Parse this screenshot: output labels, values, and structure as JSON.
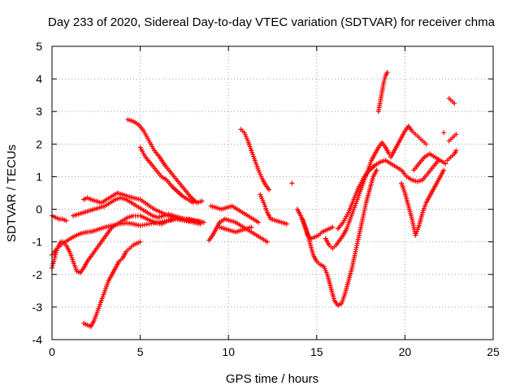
{
  "chart_data": {
    "type": "scatter",
    "title": "Day 233 of 2020, Sidereal Day-to-day VTEC variation (SDTVAR) for receiver chma",
    "xlabel": "GPS time / hours",
    "ylabel": "SDTVAR / TECUs",
    "xlim": [
      0,
      25
    ],
    "ylim": [
      -4,
      5
    ],
    "xticks": [
      0,
      5,
      10,
      15,
      20,
      25
    ],
    "xtick_labels": [
      "0",
      "5",
      "10",
      "15",
      "20",
      "25"
    ],
    "yticks": [
      -4,
      -3,
      -2,
      -1,
      0,
      1,
      2,
      3,
      4,
      5
    ],
    "ytick_labels": [
      "-4",
      "-3",
      "-2",
      "-1",
      "0",
      "1",
      "2",
      "3",
      "4",
      "5"
    ],
    "grid": true,
    "legend": "none",
    "marker": "plus",
    "color": "#ff0000",
    "series": [
      {
        "x": [
          0.0,
          0.2,
          0.4,
          0.6,
          0.8
        ],
        "y": [
          -0.2,
          -0.25,
          -0.3,
          -0.3,
          -0.35
        ]
      },
      {
        "x": [
          0.0,
          0.1,
          0.2,
          0.3,
          0.4,
          0.5
        ],
        "y": [
          -1.8,
          -1.6,
          -1.4,
          -1.2,
          -1.1,
          -1.0
        ]
      },
      {
        "x": [
          0.0,
          0.1,
          0.2,
          0.4,
          0.6,
          0.9,
          1.2,
          1.4,
          1.6,
          1.8,
          2.0,
          2.3,
          2.6,
          3.0,
          3.4,
          3.8,
          4.2,
          4.6,
          5.0,
          5.5,
          6.0,
          6.5,
          7.0,
          7.5,
          8.0,
          8.4
        ],
        "y": [
          -1.4,
          -1.35,
          -1.25,
          -1.15,
          -1.05,
          -0.95,
          -0.85,
          -0.8,
          -0.75,
          -0.72,
          -0.7,
          -0.68,
          -0.62,
          -0.55,
          -0.5,
          -0.45,
          -0.42,
          -0.45,
          -0.5,
          -0.45,
          -0.4,
          -0.35,
          -0.3,
          -0.35,
          -0.4,
          -0.45
        ]
      },
      {
        "x": [
          0.6,
          0.8,
          1.0,
          1.2,
          1.4,
          1.6,
          1.8,
          2.0,
          2.2,
          2.4,
          2.6,
          2.8,
          3.0,
          3.2,
          3.4,
          3.7,
          4.0,
          4.3,
          4.6,
          5.0,
          5.4,
          5.8,
          6.2,
          6.6,
          7.0,
          7.5,
          8.0,
          8.5
        ],
        "y": [
          -1.0,
          -1.1,
          -1.3,
          -1.6,
          -1.9,
          -1.95,
          -1.8,
          -1.6,
          -1.45,
          -1.3,
          -1.15,
          -1.0,
          -0.85,
          -0.7,
          -0.55,
          -0.45,
          -0.35,
          -0.25,
          -0.2,
          -0.2,
          -0.3,
          -0.4,
          -0.45,
          -0.35,
          -0.3,
          -0.3,
          -0.35,
          -0.4
        ]
      },
      {
        "x": [
          1.8,
          2.0,
          2.2,
          2.4,
          2.6,
          2.8,
          3.0,
          3.2,
          3.4,
          3.6,
          3.8,
          4.0,
          4.2,
          4.4,
          4.6,
          4.8,
          5.0
        ],
        "y": [
          -3.5,
          -3.55,
          -3.6,
          -3.4,
          -3.1,
          -2.8,
          -2.5,
          -2.2,
          -2.0,
          -1.8,
          -1.6,
          -1.5,
          -1.3,
          -1.2,
          -1.1,
          -1.05,
          -1.0
        ]
      },
      {
        "x": [
          1.8,
          2.0,
          2.2,
          2.5,
          2.8,
          3.1,
          3.4,
          3.7,
          4.0,
          4.3,
          4.6,
          5.0,
          5.4,
          5.8,
          6.2,
          6.6,
          7.0,
          7.4,
          7.8,
          8.2,
          8.6
        ],
        "y": [
          0.3,
          0.35,
          0.3,
          0.25,
          0.2,
          0.3,
          0.4,
          0.5,
          0.45,
          0.4,
          0.35,
          0.3,
          0.15,
          0.0,
          -0.1,
          -0.2,
          -0.25,
          -0.3,
          -0.35,
          -0.35,
          -0.4
        ]
      },
      {
        "x": [
          1.2,
          1.5,
          1.8,
          2.1,
          2.4,
          2.7,
          3.0,
          3.3,
          3.6,
          3.9,
          4.2,
          4.5,
          4.8,
          5.1,
          5.4,
          5.7,
          6.0,
          6.3,
          6.6,
          6.9,
          7.2,
          7.5,
          7.8,
          8.1,
          8.4
        ],
        "y": [
          -0.2,
          -0.15,
          -0.1,
          -0.05,
          0.0,
          0.05,
          0.1,
          0.2,
          0.3,
          0.35,
          0.3,
          0.2,
          0.1,
          0.0,
          -0.1,
          -0.2,
          -0.25,
          -0.2,
          -0.15,
          -0.2,
          -0.25,
          -0.3,
          -0.3,
          -0.35,
          -0.4
        ]
      },
      {
        "x": [
          4.3,
          4.6,
          4.9,
          5.2,
          5.5,
          5.8,
          6.1,
          6.4,
          6.7,
          7.0,
          7.3,
          7.6,
          7.9,
          8.2,
          8.5
        ],
        "y": [
          2.75,
          2.7,
          2.6,
          2.4,
          2.1,
          1.8,
          1.6,
          1.35,
          1.15,
          0.95,
          0.75,
          0.55,
          0.35,
          0.2,
          0.25
        ]
      },
      {
        "x": [
          5.0,
          5.3,
          5.6,
          5.9,
          6.2,
          6.5,
          6.8,
          7.1,
          7.4,
          7.7,
          8.0
        ],
        "y": [
          1.9,
          1.6,
          1.4,
          1.2,
          1.0,
          0.9,
          0.7,
          0.55,
          0.4,
          0.3,
          0.2
        ]
      },
      {
        "x": [
          8.9,
          9.1,
          9.3,
          9.5,
          9.8,
          10.1,
          10.4,
          10.7,
          11.0,
          11.3,
          11.6,
          11.9,
          12.2
        ],
        "y": [
          -0.95,
          -0.8,
          -0.6,
          -0.4,
          -0.3,
          -0.35,
          -0.4,
          -0.5,
          -0.6,
          -0.7,
          -0.8,
          -0.9,
          -1.0
        ]
      },
      {
        "x": [
          9.0,
          9.3,
          9.6,
          9.9,
          10.2,
          10.5,
          10.8,
          11.1,
          11.4,
          11.7
        ],
        "y": [
          0.1,
          0.05,
          0.0,
          0.05,
          0.1,
          0.0,
          -0.1,
          -0.2,
          -0.3,
          -0.4
        ]
      },
      {
        "x": [
          9.5,
          9.8,
          10.1,
          10.4,
          10.7,
          11.0,
          11.3
        ],
        "y": [
          -0.55,
          -0.6,
          -0.65,
          -0.7,
          -0.65,
          -0.6,
          -0.55
        ]
      },
      {
        "x": [
          10.7,
          10.9,
          11.1,
          11.3,
          11.5,
          11.7,
          11.9,
          12.1,
          12.3
        ],
        "y": [
          2.45,
          2.35,
          2.1,
          1.8,
          1.5,
          1.2,
          0.95,
          0.75,
          0.6
        ]
      },
      {
        "x": [
          11.8,
          12.0,
          12.2,
          12.4,
          12.7,
          13.0,
          13.3
        ],
        "y": [
          0.45,
          0.2,
          -0.1,
          -0.3,
          -0.35,
          -0.4,
          -0.45
        ]
      },
      {
        "x": [
          13.6
        ],
        "y": [
          0.8
        ]
      },
      {
        "x": [
          13.9,
          14.1,
          14.3,
          14.5,
          14.7,
          14.9,
          15.1,
          15.3,
          15.5,
          15.7,
          15.9
        ],
        "y": [
          0.0,
          -0.2,
          -0.5,
          -0.8,
          -0.9,
          -0.85,
          -0.8,
          -0.7,
          -0.65,
          -0.6,
          -0.55
        ]
      },
      {
        "x": [
          14.2,
          14.4,
          14.6,
          14.8,
          15.0,
          15.2,
          15.4,
          15.6,
          15.8,
          16.0,
          16.2,
          16.4,
          16.6,
          16.8,
          17.0,
          17.2,
          17.4,
          17.6,
          17.8,
          18.0,
          18.2,
          18.4
        ],
        "y": [
          -0.3,
          -0.6,
          -1.0,
          -1.4,
          -1.6,
          -1.7,
          -1.75,
          -2.0,
          -2.4,
          -2.8,
          -2.95,
          -2.9,
          -2.6,
          -2.2,
          -1.8,
          -1.3,
          -0.8,
          -0.3,
          0.2,
          0.6,
          1.0,
          1.2
        ]
      },
      {
        "x": [
          15.5,
          15.7,
          15.9,
          16.1,
          16.3,
          16.5,
          16.7,
          16.9,
          17.1,
          17.3,
          17.5,
          17.7,
          17.9,
          18.1,
          18.3,
          18.5,
          18.7,
          18.9,
          19.1
        ],
        "y": [
          -0.9,
          -1.1,
          -1.2,
          -1.1,
          -0.95,
          -0.8,
          -0.6,
          -0.3,
          0.0,
          0.3,
          0.6,
          0.9,
          1.2,
          1.5,
          1.7,
          1.9,
          2.05,
          1.9,
          1.7
        ]
      },
      {
        "x": [
          16.2,
          16.5,
          16.8,
          17.1,
          17.4,
          17.7,
          18.0,
          18.3,
          18.6,
          18.9,
          19.2,
          19.5,
          19.8,
          20.1,
          20.4,
          20.7,
          21.0,
          21.3,
          21.6,
          21.9
        ],
        "y": [
          -0.6,
          -0.4,
          -0.1,
          0.3,
          0.7,
          1.0,
          1.2,
          1.35,
          1.45,
          1.5,
          1.4,
          1.3,
          1.2,
          1.0,
          0.9,
          0.85,
          0.9,
          1.1,
          1.3,
          1.5
        ]
      },
      {
        "x": [
          18.5,
          18.6,
          18.7,
          18.8,
          18.9,
          19.0
        ],
        "y": [
          3.0,
          3.3,
          3.6,
          3.9,
          4.1,
          4.2
        ]
      },
      {
        "x": [
          19.2,
          19.4,
          19.6,
          19.8,
          20.0,
          20.2,
          20.4,
          20.6,
          20.8,
          21.0,
          21.2
        ],
        "y": [
          1.6,
          1.8,
          2.0,
          2.2,
          2.4,
          2.55,
          2.4,
          2.3,
          2.2,
          2.1,
          2.0
        ]
      },
      {
        "x": [
          19.8,
          20.0,
          20.2,
          20.4,
          20.6,
          20.8,
          21.0,
          21.2,
          21.4,
          21.6,
          21.8,
          22.0,
          22.2
        ],
        "y": [
          0.8,
          0.5,
          0.1,
          -0.3,
          -0.8,
          -0.5,
          -0.1,
          0.2,
          0.4,
          0.6,
          0.8,
          1.0,
          1.2
        ]
      },
      {
        "x": [
          20.5,
          20.8,
          21.1,
          21.4,
          21.7,
          22.0,
          22.3
        ],
        "y": [
          1.2,
          1.4,
          1.6,
          1.7,
          1.6,
          1.5,
          1.4
        ]
      },
      {
        "x": [
          22.2
        ],
        "y": [
          2.35
        ]
      },
      {
        "x": [
          22.5,
          22.6,
          22.7,
          22.8
        ],
        "y": [
          3.4,
          3.35,
          3.3,
          3.25
        ]
      },
      {
        "x": [
          22.4,
          22.6,
          22.8,
          22.9
        ],
        "y": [
          1.5,
          1.6,
          1.7,
          1.8
        ]
      },
      {
        "x": [
          22.5,
          22.7,
          22.9
        ],
        "y": [
          2.1,
          2.2,
          2.3
        ]
      }
    ]
  }
}
